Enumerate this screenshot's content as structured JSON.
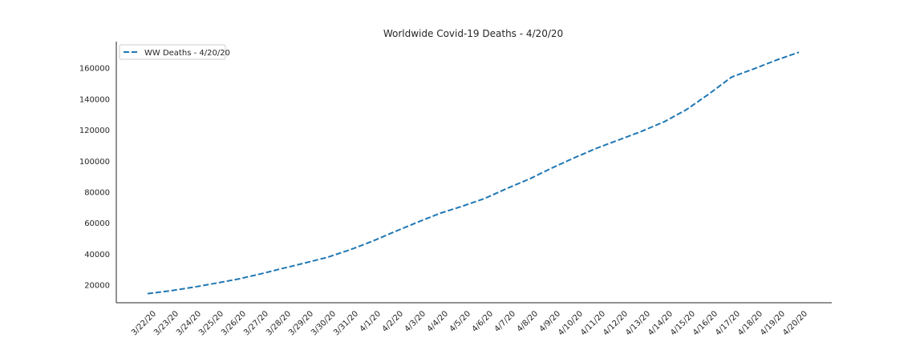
{
  "chart_data": {
    "type": "line",
    "title": "Worldwide Covid-19 Deaths - 4/20/20",
    "xlabel": "",
    "ylabel": "",
    "categories": [
      "3/22/20",
      "3/23/20",
      "3/24/20",
      "3/25/20",
      "3/26/20",
      "3/27/20",
      "3/28/20",
      "3/29/20",
      "3/30/20",
      "3/31/20",
      "4/1/20",
      "4/2/20",
      "4/3/20",
      "4/4/20",
      "4/5/20",
      "4/6/20",
      "4/7/20",
      "4/8/20",
      "4/9/20",
      "4/10/20",
      "4/11/20",
      "4/12/20",
      "4/13/20",
      "4/14/20",
      "4/15/20",
      "4/16/20",
      "4/17/20",
      "4/18/20",
      "4/19/20",
      "4/20/20"
    ],
    "series": [
      {
        "name": "WW Deaths - 4/20/20",
        "color": "#1f77b4",
        "line_style": "dashed",
        "values": [
          14600,
          16400,
          18600,
          21200,
          23900,
          27200,
          30800,
          34300,
          38000,
          42800,
          48300,
          54500,
          60500,
          66300,
          70900,
          75900,
          82400,
          88500,
          95600,
          102200,
          108400,
          113800,
          119300,
          125400,
          133300,
          143400,
          154200,
          159600,
          165200,
          170300
        ]
      }
    ],
    "yticks": [
      20000,
      40000,
      60000,
      80000,
      100000,
      120000,
      140000,
      160000
    ],
    "ylim": [
      8700,
      177100
    ],
    "grid": false,
    "legend_position": "upper-left"
  }
}
